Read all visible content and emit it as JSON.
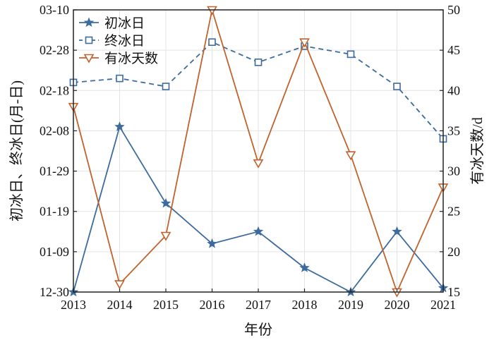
{
  "chart_data": {
    "type": "line",
    "x": [
      2013,
      2014,
      2015,
      2016,
      2017,
      2018,
      2019,
      2020,
      2021
    ],
    "x_ticks": [
      "2013",
      "2014",
      "2015",
      "2016",
      "2017",
      "2018",
      "2019",
      "2020",
      "2021"
    ],
    "xlabel": "年份",
    "ylabel_left": "初冰日、终冰日(月-日)",
    "ylabel_right": "有冰天数/d",
    "y_left_ticks": [
      "12-30",
      "01-09",
      "01-19",
      "01-29",
      "02-08",
      "02-18",
      "02-28",
      "03-10"
    ],
    "y_left_range_days": [
      0,
      70
    ],
    "y_right_ticks": [
      "15",
      "20",
      "25",
      "30",
      "35",
      "40",
      "45",
      "50"
    ],
    "y_right_range": [
      15,
      50
    ],
    "grid": true,
    "legend_position": "top-left",
    "series": [
      {
        "name": "初冰日",
        "axis": "left",
        "marker": "star",
        "line": "solid",
        "color": "#3d6b9e",
        "values": [
          "12-30",
          "02-09",
          "01-21",
          "01-11",
          "01-14",
          "01-05",
          "12-30",
          "01-14",
          "12-31"
        ],
        "days_after_dec30": [
          0,
          41,
          22,
          12,
          15,
          6,
          0,
          15,
          1
        ]
      },
      {
        "name": "终冰日",
        "axis": "left",
        "marker": "square-open",
        "line": "dashed",
        "color": "#3d6b9e",
        "values": [
          "02-20",
          "02-21",
          "02-19",
          "03-02",
          "02-25",
          "03-01",
          "02-27",
          "02-19",
          "02-06"
        ],
        "days_after_dec30": [
          52,
          53,
          51,
          62,
          57,
          61,
          59,
          51,
          38
        ]
      },
      {
        "name": "有冰天数",
        "axis": "right",
        "marker": "triangle-down-open",
        "line": "solid",
        "color": "#c0622e",
        "values": [
          38,
          16,
          22,
          50,
          31,
          46,
          32,
          15,
          28
        ]
      }
    ]
  }
}
